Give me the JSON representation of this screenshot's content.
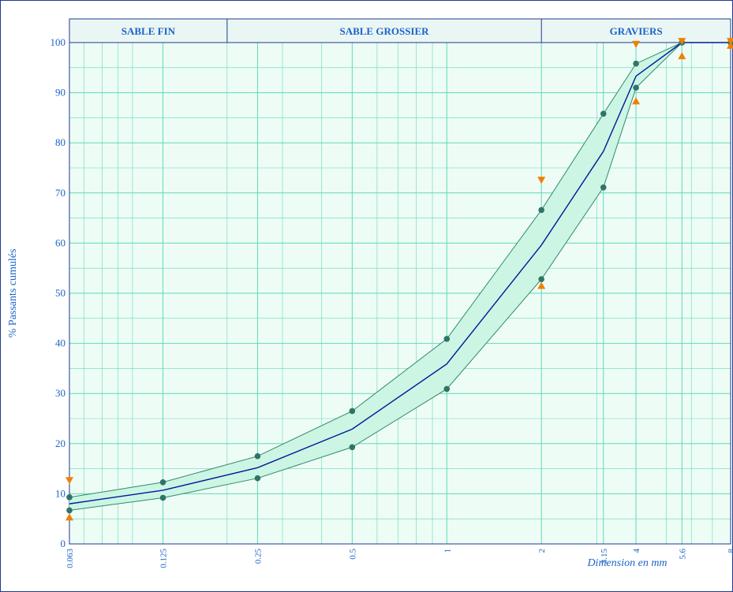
{
  "chart_data": {
    "type": "line",
    "xscale": "log",
    "xlabel": "Dimension en mm",
    "ylabel": "% Passants cumulés",
    "ylim": [
      0,
      100
    ],
    "yticks": [
      0,
      10,
      20,
      30,
      40,
      50,
      60,
      70,
      80,
      90,
      100
    ],
    "xticks": [
      {
        "value": 0.063,
        "label": "0.063"
      },
      {
        "value": 0.125,
        "label": "0.125"
      },
      {
        "value": 0.25,
        "label": "0.25"
      },
      {
        "value": 0.5,
        "label": "0.5"
      },
      {
        "value": 1,
        "label": "1"
      },
      {
        "value": 2,
        "label": "2"
      },
      {
        "value": 3.15,
        "label": "3.15"
      },
      {
        "value": 4,
        "label": "4"
      },
      {
        "value": 5.6,
        "label": "5.6"
      },
      {
        "value": 8,
        "label": "8"
      }
    ],
    "zones": [
      {
        "label": "SABLE FIN",
        "from": 0.063,
        "to": 0.2
      },
      {
        "label": "SABLE GROSSIER",
        "from": 0.2,
        "to": 2
      },
      {
        "label": "GRAVIERS",
        "from": 2,
        "to": 8
      }
    ],
    "series": [
      {
        "role": "upper",
        "x": [
          0.063,
          0.125,
          0.25,
          0.5,
          1,
          2,
          3.15,
          4,
          5.6,
          8
        ],
        "y": [
          9.3,
          12.3,
          17.5,
          26.5,
          40.9,
          66.6,
          85.8,
          95.8,
          100,
          100
        ]
      },
      {
        "role": "mean",
        "x": [
          0.063,
          0.125,
          0.25,
          0.5,
          1,
          2,
          3.15,
          4,
          5.6,
          8
        ],
        "y": [
          8.0,
          10.7,
          15.2,
          22.9,
          35.9,
          59.6,
          78.3,
          93.3,
          100,
          100
        ]
      },
      {
        "role": "lower",
        "x": [
          0.063,
          0.125,
          0.25,
          0.5,
          1,
          2,
          3.15,
          4,
          5.6,
          8
        ],
        "y": [
          6.7,
          9.2,
          13.1,
          19.3,
          30.9,
          52.8,
          71.1,
          91.0,
          100,
          100
        ]
      }
    ],
    "limit_markers": {
      "upper": {
        "x": [
          0.063,
          2,
          4,
          5.6,
          8
        ],
        "y": [
          12.7,
          72.6,
          99.7,
          100.3,
          100.3
        ]
      },
      "lower": {
        "x": [
          0.063,
          2,
          4,
          5.6,
          8
        ],
        "y": [
          5.3,
          51.5,
          88.3,
          97.3,
          99.4
        ]
      }
    },
    "colors": {
      "band": "#ccf5e4",
      "band_line": "#2e8b6b",
      "mean_line": "#001a99",
      "points": "#2f7468",
      "markers": "#f08000",
      "grid": "#5fd9b8",
      "text": "#1a63c9"
    }
  }
}
